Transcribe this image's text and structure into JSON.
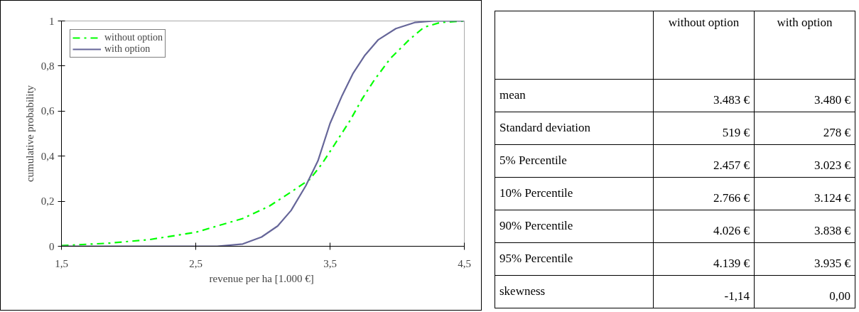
{
  "chart_data": [
    {
      "type": "line",
      "xlabel": "revenue per ha  [1.000 €]",
      "ylabel": "cumulative probability",
      "xlim": [
        1.5,
        4.5
      ],
      "ylim": [
        0,
        1
      ],
      "xticks": [
        {
          "value": 1.5,
          "label": "1,5"
        },
        {
          "value": 2.5,
          "label": "2,5"
        },
        {
          "value": 3.5,
          "label": "3,5"
        },
        {
          "value": 4.5,
          "label": "4,5"
        }
      ],
      "yticks": [
        0,
        {
          "value": 0.2,
          "label": "0,2"
        },
        {
          "value": 0.4,
          "label": "0,4"
        },
        {
          "value": 0.6,
          "label": "0,6"
        },
        {
          "value": 0.8,
          "label": "0,8"
        },
        1
      ],
      "grid": false,
      "legend": "top left",
      "marker": "none",
      "series": [
        {
          "name": "without option",
          "color": "#00ff00",
          "line_style": "dashed",
          "x": [
            1.5,
            1.86,
            2.16,
            2.5,
            2.85,
            3.05,
            3.21,
            3.35,
            3.44,
            3.53,
            3.65,
            3.74,
            3.83,
            3.95,
            4.09,
            4.2,
            4.32,
            4.5
          ],
          "values": [
            0.003,
            0.014,
            0.03,
            0.062,
            0.123,
            0.179,
            0.241,
            0.297,
            0.366,
            0.448,
            0.559,
            0.655,
            0.738,
            0.834,
            0.917,
            0.972,
            0.993,
            1
          ]
        },
        {
          "name": "with option",
          "color": "#666699",
          "line_style": "solid",
          "x": [
            1.5,
            2.66,
            2.85,
            2.99,
            3.11,
            3.21,
            3.32,
            3.41,
            3.5,
            3.59,
            3.67,
            3.76,
            3.86,
            3.99,
            4.13,
            4.27,
            4.5
          ],
          "values": [
            0,
            0,
            0.01,
            0.041,
            0.09,
            0.159,
            0.269,
            0.379,
            0.545,
            0.669,
            0.766,
            0.848,
            0.917,
            0.966,
            0.993,
            1,
            1
          ]
        }
      ]
    },
    {
      "type": "other",
      "categories": [
        "without option",
        "with option"
      ],
      "y_categories": [
        "mean",
        "Standard deviation",
        "5% Percentile",
        "10% Percentile",
        "90% Percentile",
        "95% Percentile",
        "skewness"
      ],
      "cell_labels": [
        [
          "3.483 €",
          "3.480 €"
        ],
        [
          "519 €",
          "278 €"
        ],
        [
          "2.457 €",
          "3.023 €"
        ],
        [
          "2.766 €",
          "3.124 €"
        ],
        [
          "4.026 €",
          "3.838 €"
        ],
        [
          "4.139 €",
          "3.935 €"
        ],
        [
          "-1,14",
          "0,00"
        ]
      ]
    }
  ]
}
